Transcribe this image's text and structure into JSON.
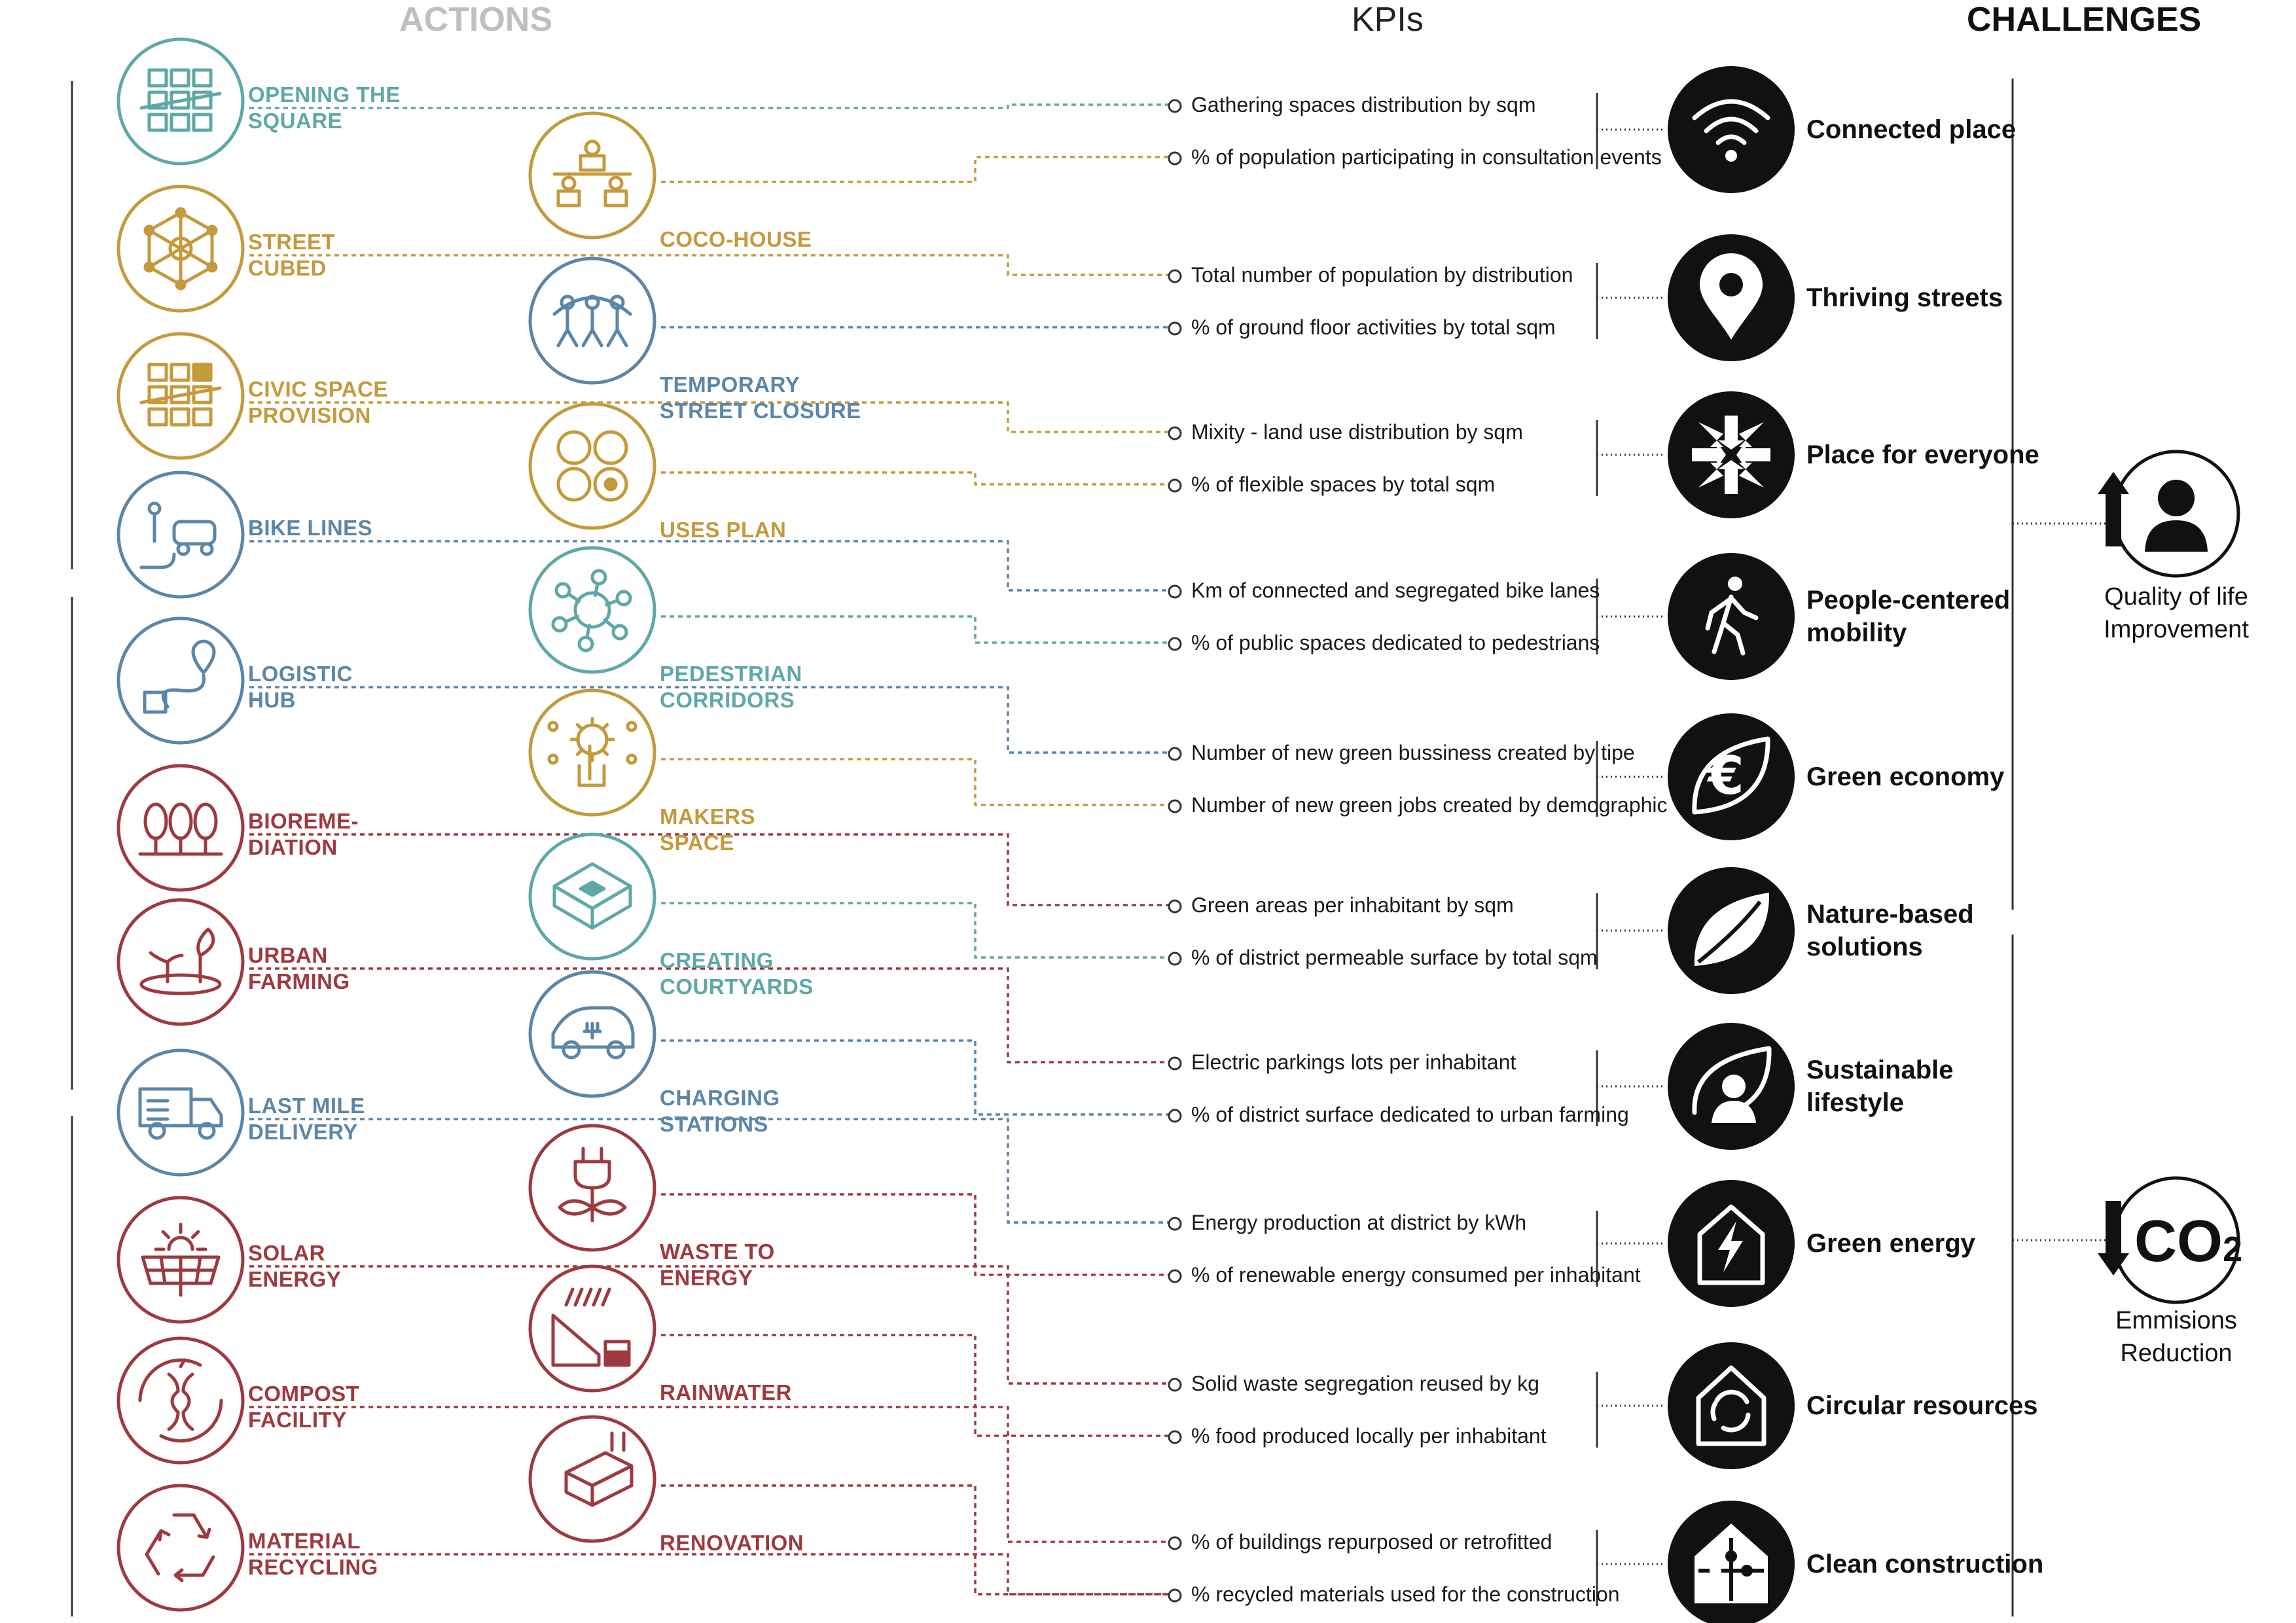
{
  "headers": {
    "actions": "ACTIONS",
    "kpis": "KPIs",
    "challenges": "CHALLENGES"
  },
  "colors": {
    "teal": "#5fa8a8",
    "gold": "#c49a3c",
    "blue": "#5b86a8",
    "red": "#9e3a3f",
    "header_gray": "#bfbfbf",
    "black": "#111111"
  },
  "actions": [
    {
      "label_lines": [
        "OPENING THE",
        "SQUARE"
      ],
      "color": "teal",
      "icon": "square-grid-icon"
    },
    {
      "label_lines": [
        "COCO-HOUSE"
      ],
      "color": "gold",
      "icon": "people-table-icon"
    },
    {
      "label_lines": [
        "STREET",
        "CUBED"
      ],
      "color": "gold",
      "icon": "network-cube-icon"
    },
    {
      "label_lines": [
        "TEMPORARY",
        "STREET CLOSURE"
      ],
      "color": "blue",
      "icon": "street-activities-icon"
    },
    {
      "label_lines": [
        "CIVIC SPACE",
        "PROVISION"
      ],
      "color": "gold",
      "icon": "civic-grid-icon"
    },
    {
      "label_lines": [
        "USES PLAN"
      ],
      "color": "gold",
      "icon": "four-uses-icon"
    },
    {
      "label_lines": [
        "BIKE LINES"
      ],
      "color": "blue",
      "icon": "bike-car-icon"
    },
    {
      "label_lines": [
        "PEDESTRIAN",
        "CORRIDORS"
      ],
      "color": "teal",
      "icon": "node-network-icon"
    },
    {
      "label_lines": [
        "LOGISTIC",
        "HUB"
      ],
      "color": "blue",
      "icon": "route-pin-icon"
    },
    {
      "label_lines": [
        "MAKERS",
        "SPACE"
      ],
      "color": "gold",
      "icon": "gear-hand-icon"
    },
    {
      "label_lines": [
        "BIOREME-",
        "DIATION"
      ],
      "color": "red",
      "icon": "trees-icon"
    },
    {
      "label_lines": [
        "CREATING",
        "COURTYARDS"
      ],
      "color": "teal",
      "icon": "courtyard-blocks-icon"
    },
    {
      "label_lines": [
        "URBAN",
        "FARMING"
      ],
      "color": "red",
      "icon": "sprouts-icon"
    },
    {
      "label_lines": [
        "CHARGING",
        "STATIONS"
      ],
      "color": "blue",
      "icon": "electric-car-icon"
    },
    {
      "label_lines": [
        "LAST MILE",
        "DELIVERY"
      ],
      "color": "blue",
      "icon": "delivery-truck-icon"
    },
    {
      "label_lines": [
        "WASTE TO",
        "ENERGY"
      ],
      "color": "red",
      "icon": "plug-plant-icon"
    },
    {
      "label_lines": [
        "SOLAR",
        "ENERGY"
      ],
      "color": "red",
      "icon": "solar-panel-icon"
    },
    {
      "label_lines": [
        "RAINWATER"
      ],
      "color": "red",
      "icon": "rain-roof-icon"
    },
    {
      "label_lines": [
        "COMPOST",
        "FACILITY"
      ],
      "color": "red",
      "icon": "apple-core-icon"
    },
    {
      "label_lines": [
        "RENOVATION"
      ],
      "color": "red",
      "icon": "brick-tools-icon"
    },
    {
      "label_lines": [
        "MATERIAL",
        "RECYCLING"
      ],
      "color": "red",
      "icon": "recycle-icon"
    }
  ],
  "kpis": [
    "Gathering spaces distribution by sqm",
    "% of population participating in consultation events",
    "Total number of population by distribution",
    "% of ground floor activities by total sqm",
    "Mixity - land use distribution by sqm",
    "% of flexible spaces by total sqm",
    "Km of connected and segregated bike lanes",
    "% of public spaces dedicated to pedestrians",
    "Number of new green bussiness created by tipe",
    "Number of new green jobs created by demographic",
    "Green areas per inhabitant by sqm",
    "% of district permeable surface by total sqm",
    "Electric parkings lots per inhabitant",
    "% of district surface dedicated to urban farming",
    "Energy production at district by kWh",
    "% of renewable energy consumed per inhabitant",
    "Solid waste segregation reused by kg",
    "% food produced locally per inhabitant",
    "% of buildings repurposed or retrofitted",
    "% recycled materials used for the construction"
  ],
  "challenges": [
    {
      "lines": [
        "Connected place"
      ],
      "icon": "wifi-icon"
    },
    {
      "lines": [
        "Thriving streets"
      ],
      "icon": "map-pin-icon"
    },
    {
      "lines": [
        "Place for everyone"
      ],
      "icon": "converge-arrows-icon"
    },
    {
      "lines": [
        "People-centered",
        "mobility"
      ],
      "icon": "walking-person-icon"
    },
    {
      "lines": [
        "Green economy"
      ],
      "icon": "leaf-euro-icon"
    },
    {
      "lines": [
        "Nature-based",
        "solutions"
      ],
      "icon": "leaf-icon"
    },
    {
      "lines": [
        "Sustainable",
        "lifestyle"
      ],
      "icon": "leaf-person-icon"
    },
    {
      "lines": [
        "Green energy"
      ],
      "icon": "house-bolt-icon"
    },
    {
      "lines": [
        "Circular resources"
      ],
      "icon": "house-recycle-icon"
    },
    {
      "lines": [
        "Clean construction"
      ],
      "icon": "house-puzzle-icon"
    }
  ],
  "goals": [
    {
      "lines": [
        "Quality of life",
        "Improvement"
      ],
      "icon": "person-up-arrow-icon"
    },
    {
      "lines": [
        "Emmisions",
        "Reduction"
      ],
      "icon": "co2-down-arrow-icon",
      "badge": "CO2"
    }
  ]
}
